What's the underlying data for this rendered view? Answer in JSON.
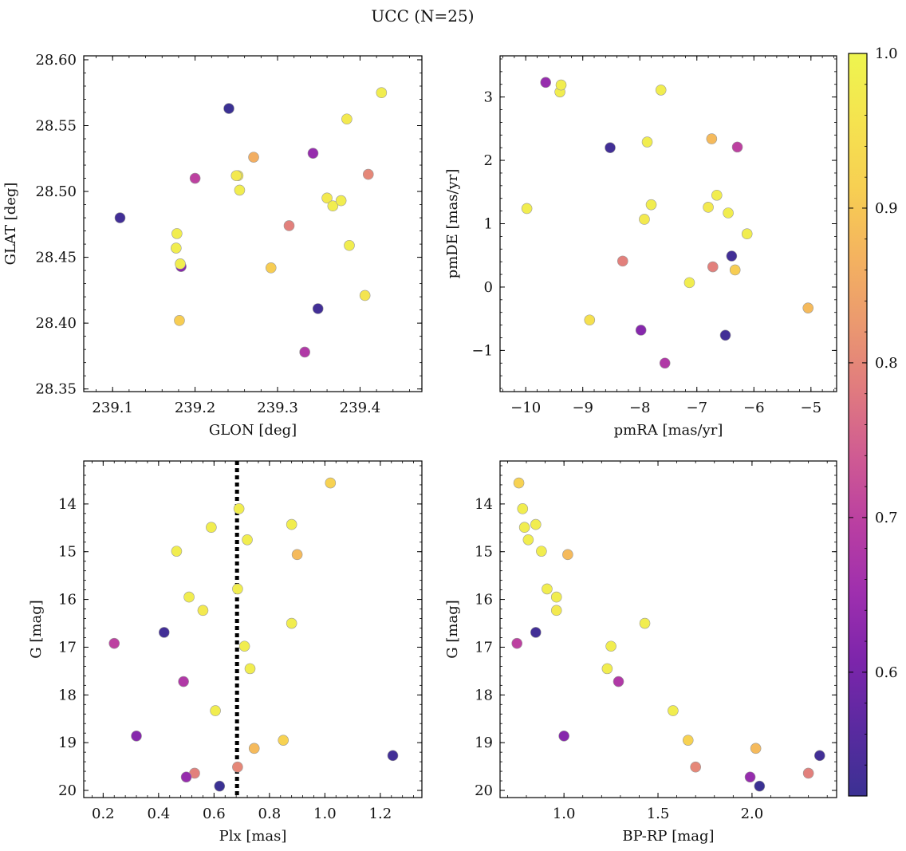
{
  "figure": {
    "title": "UCC (N=25)"
  },
  "colormap": {
    "name": "plasma",
    "min": 0.52,
    "max": 1.0,
    "ticks": [
      0.6,
      0.7,
      0.8,
      0.9,
      1.0
    ],
    "tick_labels": [
      "0.6",
      "0.7",
      "0.8",
      "0.9",
      "1.0"
    ],
    "stops": [
      "#3b3193",
      "#5a2aa0",
      "#7c25ab",
      "#9e2fae",
      "#b93ea2",
      "#cf5a93",
      "#e07a7f",
      "#eb996f",
      "#f4b35f",
      "#f7cf52",
      "#f5e34f",
      "#eef54f"
    ]
  },
  "marker_style": {
    "edge_color": "#999999"
  },
  "chart_data": [
    {
      "type": "scatter",
      "panel": "top-left",
      "xlabel": "GLON [deg]",
      "ylabel": "GLAT [deg]",
      "xlim": [
        239.065,
        239.475
      ],
      "ylim": [
        28.348,
        28.603
      ],
      "invert_y": false,
      "xticks": [
        239.1,
        239.2,
        239.3,
        239.4
      ],
      "xtick_labels": [
        "239.1",
        "239.2",
        "239.3",
        "239.4"
      ],
      "yticks": [
        28.35,
        28.4,
        28.45,
        28.5,
        28.55,
        28.6
      ],
      "ytick_labels": [
        "28.35",
        "28.40",
        "28.45",
        "28.50",
        "28.55",
        "28.60"
      ],
      "x": [
        239.109,
        239.183,
        239.178,
        239.177,
        239.182,
        239.181,
        239.2,
        239.241,
        239.252,
        239.25,
        239.254,
        239.271,
        239.292,
        239.314,
        239.333,
        239.343,
        239.349,
        239.36,
        239.367,
        239.377,
        239.384,
        239.387,
        239.406,
        239.41,
        239.426
      ],
      "y": [
        28.48,
        28.443,
        28.468,
        28.457,
        28.445,
        28.402,
        28.51,
        28.563,
        28.512,
        28.512,
        28.501,
        28.526,
        28.442,
        28.474,
        28.378,
        28.529,
        28.411,
        28.495,
        28.489,
        28.493,
        28.555,
        28.459,
        28.421,
        28.513,
        28.575
      ],
      "c": [
        0.53,
        0.62,
        0.98,
        0.98,
        0.98,
        0.91,
        0.7,
        0.52,
        0.97,
        0.97,
        0.98,
        0.86,
        0.91,
        0.79,
        0.68,
        0.64,
        0.53,
        0.97,
        0.98,
        0.98,
        0.97,
        0.98,
        0.96,
        0.8,
        0.98
      ]
    },
    {
      "type": "scatter",
      "panel": "top-right",
      "xlabel": "pmRA [mas/yr]",
      "ylabel": "pmDE [mas/yr]",
      "xlim": [
        -10.45,
        -4.55
      ],
      "ylim": [
        -1.65,
        3.65
      ],
      "invert_y": false,
      "xticks": [
        -10,
        -9,
        -8,
        -7,
        -6,
        -5
      ],
      "xtick_labels": [
        "−10",
        "−9",
        "−8",
        "−7",
        "−6",
        "−5"
      ],
      "yticks": [
        -1,
        0,
        1,
        2,
        3
      ],
      "ytick_labels": [
        "−1",
        "0",
        "1",
        "2",
        "3"
      ],
      "x": [
        -9.65,
        -9.4,
        -9.38,
        -7.63,
        -8.52,
        -7.87,
        -6.74,
        -6.29,
        -9.98,
        -7.8,
        -6.65,
        -6.8,
        -6.45,
        -7.92,
        -6.12,
        -8.3,
        -6.39,
        -6.72,
        -6.33,
        -7.13,
        -5.05,
        -8.88,
        -7.98,
        -6.5,
        -7.56
      ],
      "y": [
        3.23,
        3.08,
        3.19,
        3.11,
        2.2,
        2.29,
        2.34,
        2.21,
        1.24,
        1.3,
        1.45,
        1.26,
        1.17,
        1.07,
        0.84,
        0.41,
        0.49,
        0.32,
        0.27,
        0.07,
        -0.33,
        -0.52,
        -0.68,
        -0.76,
        -1.2
      ],
      "c": [
        0.64,
        0.98,
        0.98,
        0.98,
        0.53,
        0.98,
        0.88,
        0.7,
        0.98,
        0.98,
        0.98,
        0.97,
        0.98,
        0.97,
        0.98,
        0.79,
        0.53,
        0.79,
        0.91,
        0.98,
        0.88,
        0.95,
        0.62,
        0.53,
        0.68
      ]
    },
    {
      "type": "scatter",
      "panel": "bottom-left",
      "xlabel": "Plx [mas]",
      "ylabel": "G [mag]",
      "xlim": [
        0.13,
        1.35
      ],
      "ylim": [
        13.1,
        20.15
      ],
      "invert_y": true,
      "xticks": [
        0.2,
        0.4,
        0.6,
        0.8,
        1.0,
        1.2
      ],
      "xtick_labels": [
        "0.2",
        "0.4",
        "0.6",
        "0.8",
        "1.0",
        "1.2"
      ],
      "yticks": [
        14,
        15,
        16,
        17,
        18,
        19,
        20
      ],
      "ytick_labels": [
        "14",
        "15",
        "16",
        "17",
        "18",
        "19",
        "20"
      ],
      "vline": 0.683,
      "x": [
        1.02,
        0.69,
        0.59,
        0.88,
        0.72,
        0.465,
        0.9,
        0.51,
        0.685,
        0.56,
        0.88,
        0.24,
        0.42,
        0.71,
        0.73,
        0.49,
        0.605,
        0.32,
        0.85,
        0.745,
        0.53,
        0.685,
        0.5,
        0.62,
        1.245
      ],
      "y": [
        13.56,
        14.1,
        14.49,
        14.43,
        14.75,
        14.99,
        15.06,
        15.95,
        15.78,
        16.23,
        16.5,
        16.92,
        16.69,
        16.98,
        17.45,
        17.72,
        18.33,
        18.86,
        18.95,
        19.12,
        19.64,
        19.51,
        19.72,
        19.91,
        19.27
      ],
      "c": [
        0.92,
        0.98,
        0.98,
        0.98,
        0.98,
        0.98,
        0.88,
        0.98,
        0.98,
        0.97,
        0.98,
        0.7,
        0.53,
        0.98,
        0.98,
        0.68,
        0.98,
        0.62,
        0.92,
        0.88,
        0.79,
        0.8,
        0.64,
        0.52,
        0.53
      ]
    },
    {
      "type": "scatter",
      "panel": "bottom-right",
      "xlabel": "BP-RP [mag]",
      "ylabel": "G [mag]",
      "xlim": [
        0.66,
        2.45
      ],
      "ylim": [
        13.1,
        20.15
      ],
      "invert_y": true,
      "xticks": [
        1.0,
        1.5,
        2.0
      ],
      "xtick_labels": [
        "1.0",
        "1.5",
        "2.0"
      ],
      "yticks": [
        14,
        15,
        16,
        17,
        18,
        19,
        20
      ],
      "ytick_labels": [
        "14",
        "15",
        "16",
        "17",
        "18",
        "19",
        "20"
      ],
      "x": [
        0.76,
        0.78,
        0.79,
        0.85,
        0.81,
        0.88,
        1.02,
        0.91,
        0.96,
        0.96,
        1.43,
        0.75,
        0.85,
        1.25,
        1.23,
        1.29,
        1.58,
        1.0,
        1.66,
        2.02,
        2.3,
        1.7,
        1.99,
        2.04,
        2.36
      ],
      "y": [
        13.56,
        14.1,
        14.49,
        14.43,
        14.75,
        14.99,
        15.06,
        15.78,
        15.95,
        16.23,
        16.5,
        16.92,
        16.69,
        16.98,
        17.45,
        17.72,
        18.33,
        18.86,
        18.95,
        19.12,
        19.64,
        19.51,
        19.72,
        19.91,
        19.27
      ],
      "c": [
        0.92,
        0.98,
        0.98,
        0.98,
        0.98,
        0.98,
        0.88,
        0.98,
        0.98,
        0.97,
        0.98,
        0.7,
        0.53,
        0.98,
        0.98,
        0.68,
        0.98,
        0.62,
        0.92,
        0.88,
        0.79,
        0.8,
        0.64,
        0.52,
        0.53
      ]
    }
  ]
}
